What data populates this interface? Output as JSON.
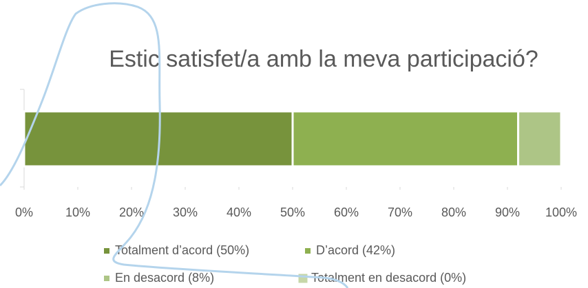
{
  "chart_data": {
    "type": "stacked_bar",
    "orientation": "horizontal",
    "title": "Estic satisfet/a amb la meva participació?",
    "series": [
      {
        "name": "Totalment d’acord (50%)",
        "color": "#77933c",
        "values": [
          50
        ]
      },
      {
        "name": "D’acord (42%)",
        "color": "#8eb050",
        "values": [
          42
        ]
      },
      {
        "name": "En desacord (8%)",
        "color": "#adc586",
        "values": [
          8
        ]
      },
      {
        "name": "Totalment en desacord (0%)",
        "color": "#c6d7a8",
        "values": [
          0
        ]
      }
    ],
    "xlim": [
      0,
      100
    ],
    "xticks": [
      {
        "value": 0,
        "label": "0%"
      },
      {
        "value": 10,
        "label": "10%"
      },
      {
        "value": 20,
        "label": "20%"
      },
      {
        "value": 30,
        "label": "30%"
      },
      {
        "value": 40,
        "label": "40%"
      },
      {
        "value": 50,
        "label": "50%"
      },
      {
        "value": 60,
        "label": "60%"
      },
      {
        "value": 70,
        "label": "70%"
      },
      {
        "value": 80,
        "label": "80%"
      },
      {
        "value": 90,
        "label": "90%"
      },
      {
        "value": 100,
        "label": "100%"
      }
    ],
    "legend": "bottom"
  }
}
